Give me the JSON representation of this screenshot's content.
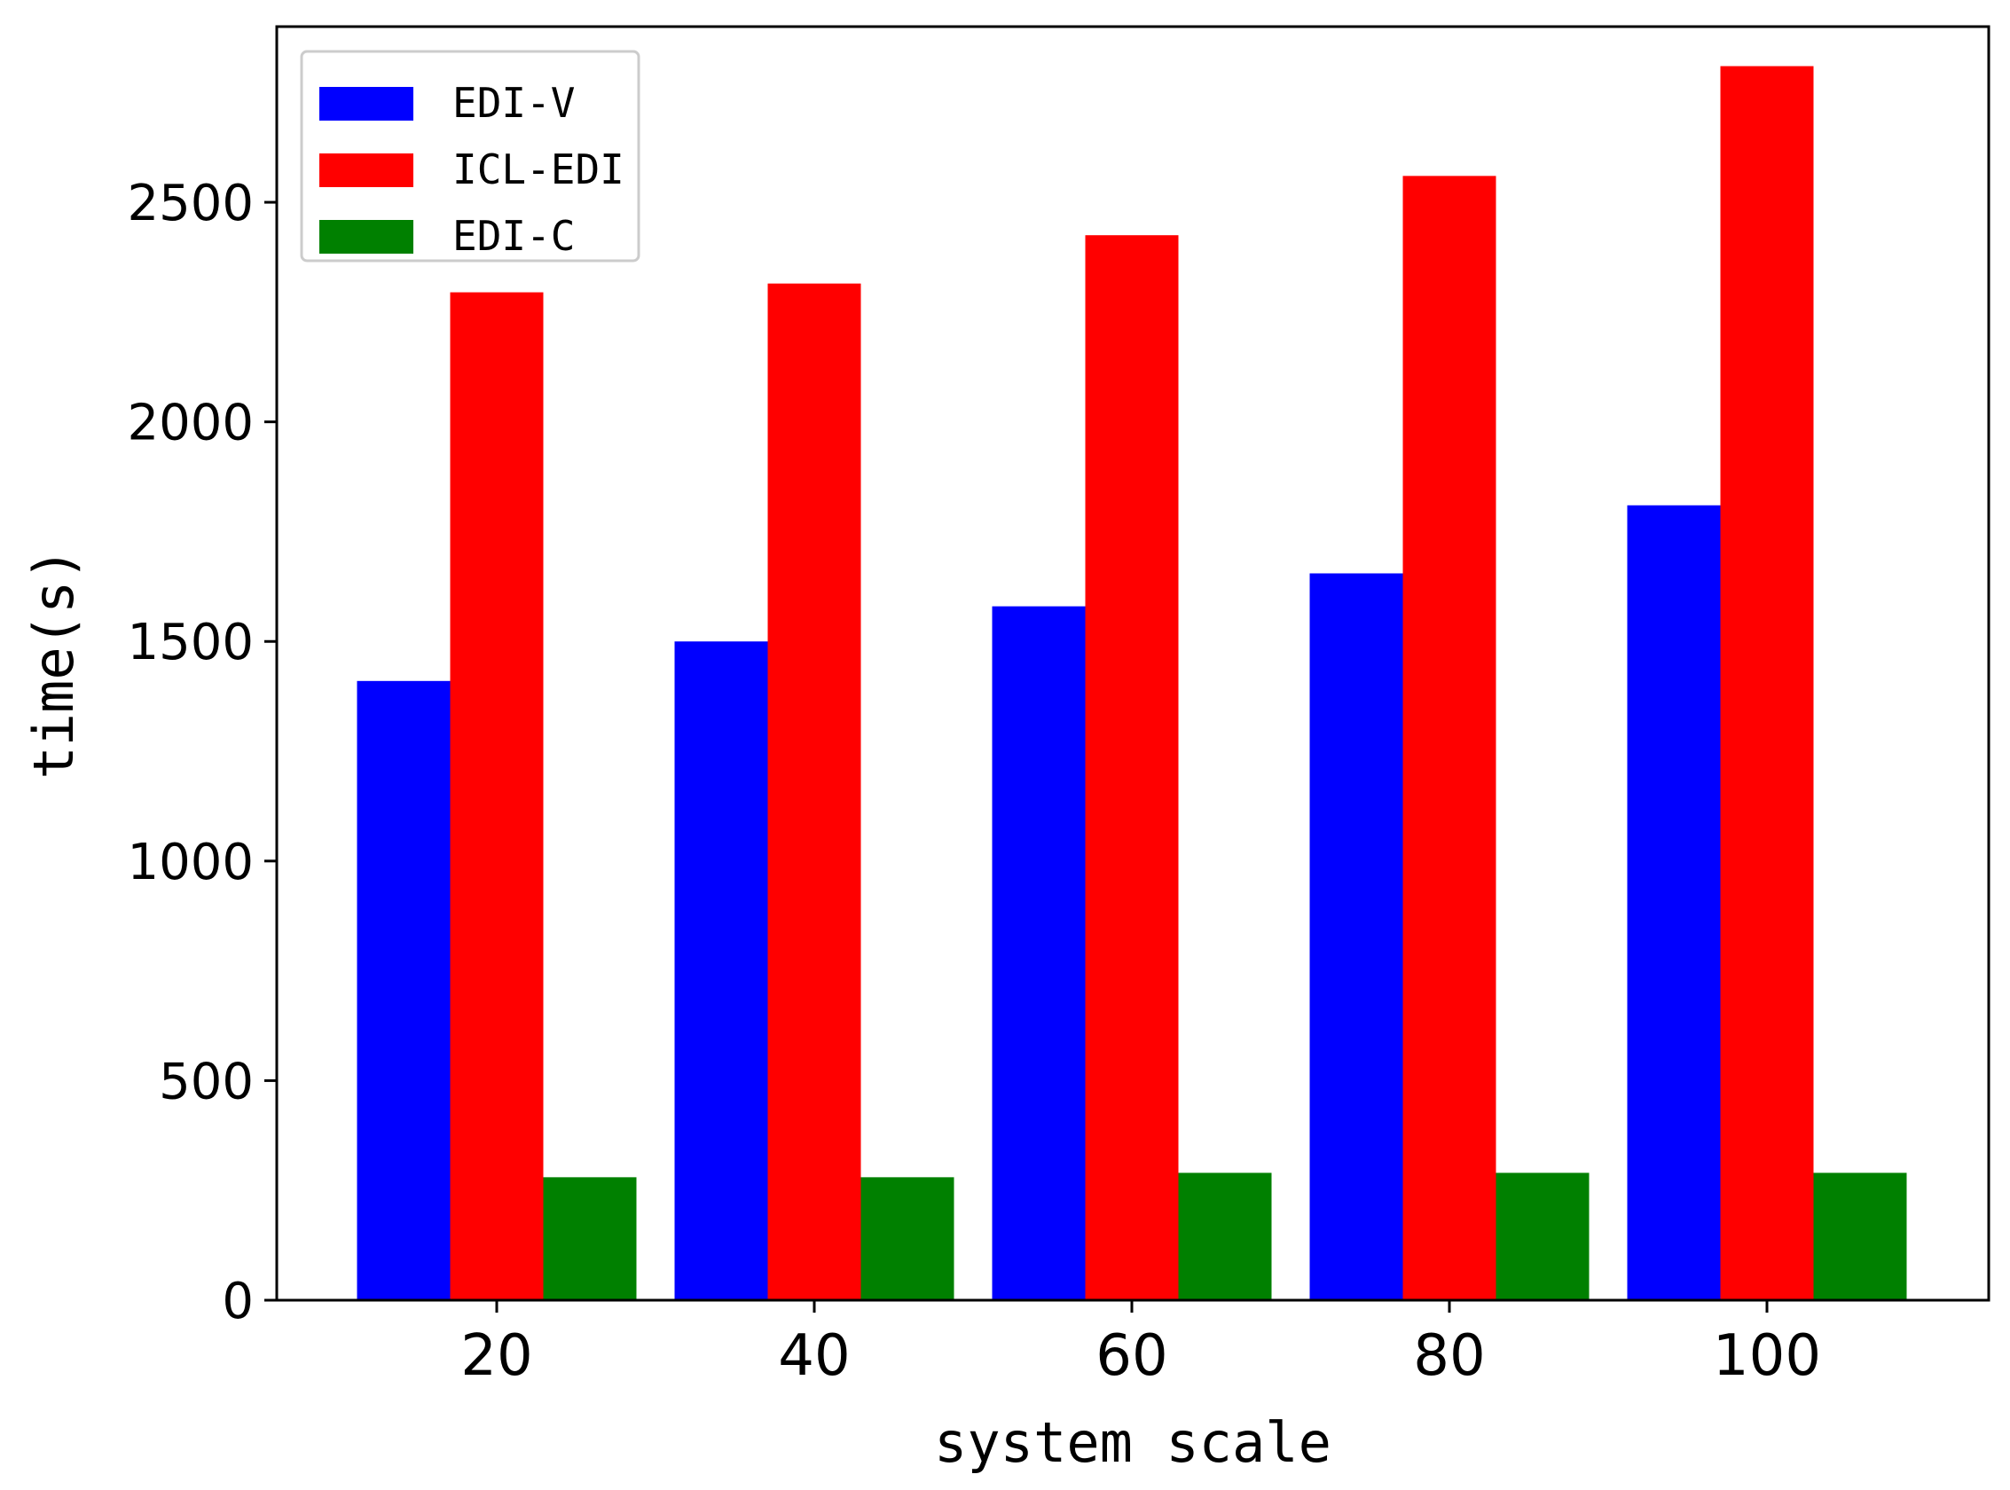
{
  "chart_data": {
    "type": "bar",
    "categories": [
      "20",
      "40",
      "60",
      "80",
      "100"
    ],
    "series": [
      {
        "name": "EDI-V",
        "color": "#0000ff",
        "values": [
          1410,
          1500,
          1580,
          1655,
          1810
        ]
      },
      {
        "name": "ICL-EDI",
        "color": "#ff0000",
        "values": [
          2295,
          2315,
          2425,
          2560,
          2810
        ]
      },
      {
        "name": "EDI-C",
        "color": "#008000",
        "values": [
          280,
          280,
          290,
          290,
          290
        ]
      }
    ],
    "title": "",
    "xlabel": "system scale",
    "ylabel": "time(s)",
    "ylim": [
      0,
      2900
    ],
    "yticks": [
      0,
      500,
      1000,
      1500,
      2000,
      2500
    ],
    "grid": false,
    "legend_position": "top-left"
  }
}
